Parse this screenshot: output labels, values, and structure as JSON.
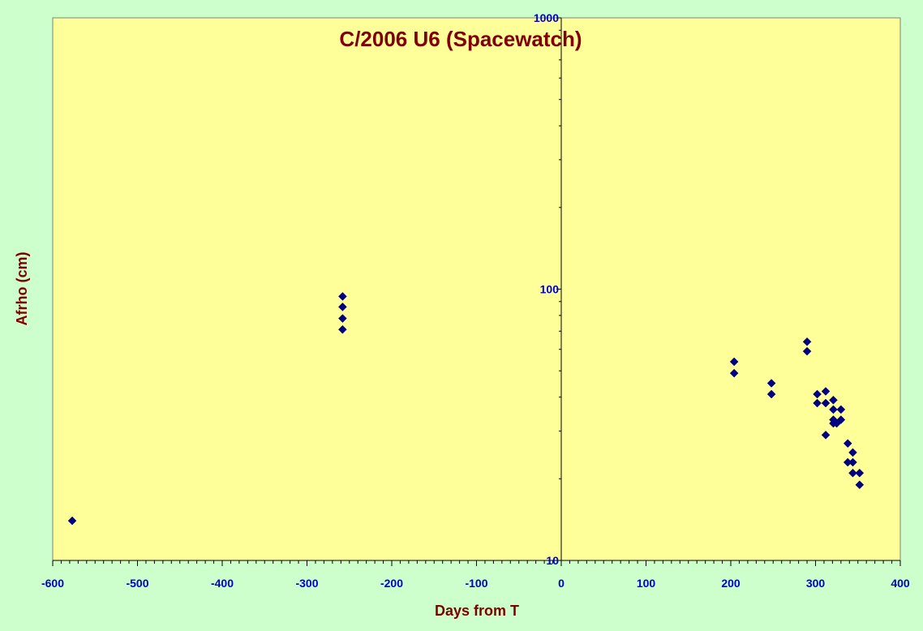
{
  "chart_data": {
    "type": "scatter",
    "title": "C/2006 U6 (Spacewatch)",
    "xlabel": "Days from T",
    "ylabel": "Afrho (cm)",
    "xlim": [
      -600,
      400
    ],
    "ylim": [
      10,
      1000
    ],
    "yscale": "log",
    "x_ticks": [
      -600,
      -500,
      -400,
      -300,
      -200,
      -100,
      0,
      100,
      200,
      300,
      400
    ],
    "y_ticks": [
      10,
      100,
      1000
    ],
    "grid": false,
    "legend": "none",
    "colors": {
      "plot_background": "#ffff99",
      "figure_background": "#ccffcc",
      "marker": "#000080",
      "tick_labels": "#0000cc",
      "titles": "#800000"
    },
    "series": [
      {
        "marker": "diamond",
        "points": [
          [
            -577,
            14
          ],
          [
            -258,
            94
          ],
          [
            -258,
            86
          ],
          [
            -258,
            78
          ],
          [
            -258,
            71
          ],
          [
            204,
            54
          ],
          [
            204,
            49
          ],
          [
            248,
            45
          ],
          [
            248,
            41
          ],
          [
            290,
            64
          ],
          [
            290,
            59
          ],
          [
            302,
            41
          ],
          [
            302,
            38
          ],
          [
            312,
            42
          ],
          [
            312,
            38
          ],
          [
            312,
            29
          ],
          [
            321,
            39
          ],
          [
            321,
            36
          ],
          [
            321,
            33
          ],
          [
            321,
            32
          ],
          [
            325,
            32
          ],
          [
            330,
            36
          ],
          [
            330,
            33
          ],
          [
            338,
            27
          ],
          [
            338,
            23
          ],
          [
            344,
            25
          ],
          [
            344,
            23
          ],
          [
            344,
            21
          ],
          [
            352,
            21
          ],
          [
            352,
            19
          ]
        ]
      }
    ]
  }
}
